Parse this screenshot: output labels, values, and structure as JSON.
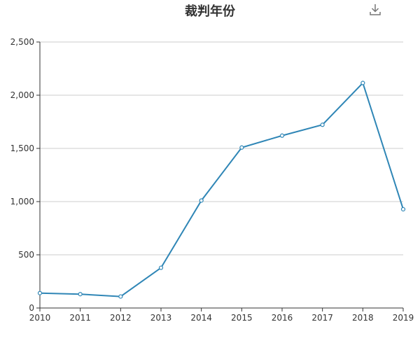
{
  "header": {
    "title": "裁判年份",
    "download_icon": "download-icon"
  },
  "colors": {
    "line": "#2f86b6",
    "grid": "#cccccc",
    "axis": "#333333"
  },
  "chart_data": {
    "type": "line",
    "title": "裁判年份",
    "xlabel": "",
    "ylabel": "",
    "categories": [
      "2010",
      "2011",
      "2012",
      "2013",
      "2014",
      "2015",
      "2016",
      "2017",
      "2018",
      "2019"
    ],
    "series": [
      {
        "values": [
          140,
          130,
          108,
          378,
          1010,
          1508,
          1620,
          1722,
          2115,
          928
        ]
      }
    ],
    "ylim": [
      0,
      2500
    ],
    "yticks": [
      0,
      500,
      1000,
      1500,
      2000,
      2500
    ],
    "ytick_labels": [
      "0",
      "500",
      "1,000",
      "1,500",
      "2,000",
      "2,500"
    ],
    "grid": true,
    "legend": "none"
  }
}
